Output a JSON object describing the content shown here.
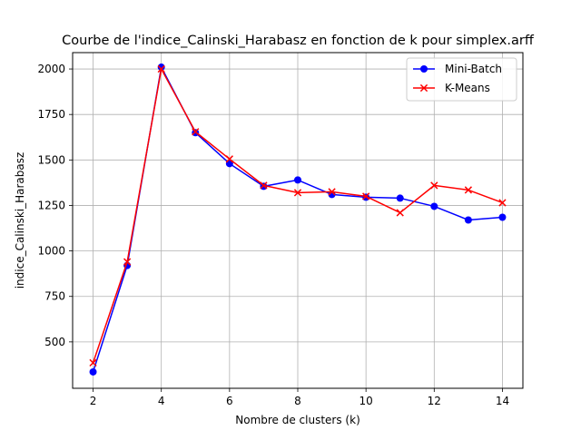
{
  "chart_data": {
    "type": "line",
    "title": "Courbe de l'indice_Calinski_Harabasz en fonction de k pour simplex.arff",
    "xlabel": "Nombre de clusters (k)",
    "ylabel": "indice_Calinski_Harabasz",
    "x": [
      2,
      3,
      4,
      5,
      6,
      7,
      8,
      9,
      10,
      11,
      12,
      13,
      14
    ],
    "xlim": [
      1.4,
      14.6
    ],
    "ylim": [
      245,
      2090
    ],
    "xticks": [
      2,
      4,
      6,
      8,
      10,
      12,
      14
    ],
    "yticks": [
      500,
      750,
      1000,
      1250,
      1500,
      1750,
      2000
    ],
    "grid": true,
    "legend_position": "top-right",
    "series": [
      {
        "name": "Mini-Batch",
        "color": "#0000ff",
        "marker": "circle",
        "values": [
          335,
          920,
          2010,
          1650,
          1480,
          1355,
          1390,
          1310,
          1295,
          1290,
          1245,
          1170,
          1185
        ]
      },
      {
        "name": "K-Means",
        "color": "#ff0000",
        "marker": "x",
        "values": [
          385,
          940,
          2000,
          1655,
          1505,
          1360,
          1320,
          1325,
          1300,
          1210,
          1360,
          1335,
          1265
        ]
      }
    ]
  }
}
